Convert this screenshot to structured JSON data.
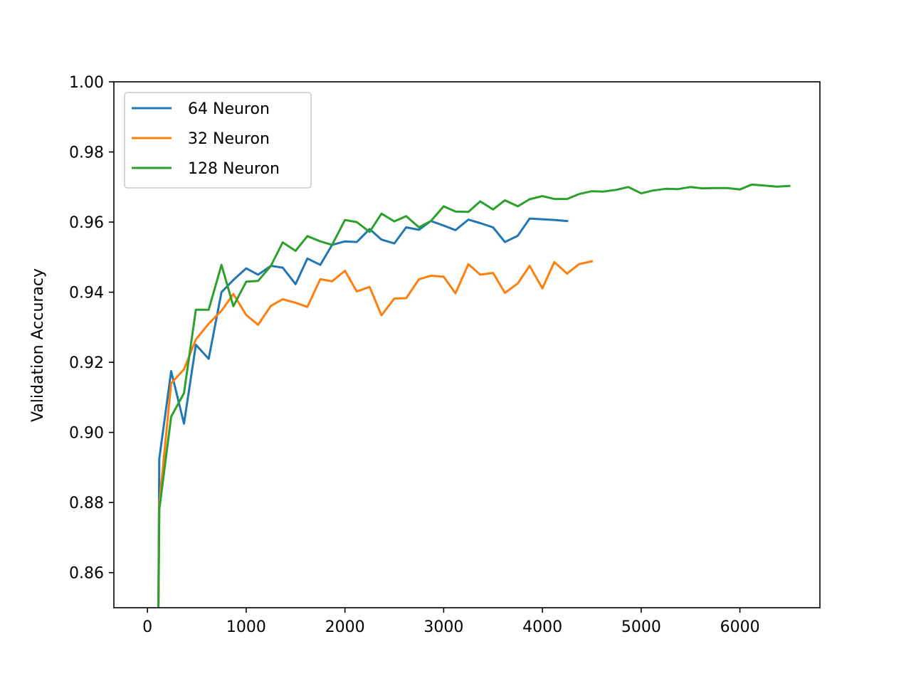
{
  "chart_data": {
    "type": "line",
    "title": "",
    "xlabel": "",
    "ylabel": "Validation Accuracy",
    "xlim": [
      -340,
      6810
    ],
    "ylim": [
      0.85,
      1.0
    ],
    "xticks": [
      0,
      1000,
      2000,
      3000,
      4000,
      5000,
      6000
    ],
    "xtick_labels": [
      "0",
      "1000",
      "2000",
      "3000",
      "4000",
      "5000",
      "6000"
    ],
    "yticks": [
      0.86,
      0.88,
      0.9,
      0.92,
      0.94,
      0.96,
      0.98,
      1.0
    ],
    "ytick_labels": [
      "0.86",
      "0.88",
      "0.90",
      "0.92",
      "0.94",
      "0.96",
      "0.98",
      "1.00"
    ],
    "grid": false,
    "legend_position": "top-left",
    "series": [
      {
        "name": "64 Neuron",
        "color": "#1f77b4",
        "x": [
          110,
          120,
          240,
          370,
          490,
          620,
          750,
          870,
          1000,
          1120,
          1250,
          1370,
          1500,
          1620,
          1750,
          1870,
          2000,
          2120,
          2250,
          2370,
          2500,
          2620,
          2750,
          2870,
          3000,
          3120,
          3250,
          3370,
          3500,
          3620,
          3750,
          3870,
          4000,
          4120,
          4250
        ],
        "y": [
          0.845,
          0.8925,
          0.9175,
          0.9025,
          0.925,
          0.921,
          0.94,
          0.9435,
          0.9468,
          0.945,
          0.9475,
          0.947,
          0.9423,
          0.9496,
          0.9478,
          0.9535,
          0.9545,
          0.9543,
          0.958,
          0.955,
          0.9539,
          0.9585,
          0.9578,
          0.9603,
          0.959,
          0.9577,
          0.9607,
          0.9597,
          0.9585,
          0.9543,
          0.9561,
          0.961,
          0.9608,
          0.9606,
          0.9603
        ]
      },
      {
        "name": "32 Neuron",
        "color": "#ff7f0e",
        "x": [
          110,
          120,
          240,
          370,
          490,
          620,
          750,
          870,
          1000,
          1120,
          1250,
          1370,
          1500,
          1620,
          1750,
          1870,
          2000,
          2120,
          2250,
          2370,
          2500,
          2620,
          2750,
          2870,
          3000,
          3120,
          3250,
          3370,
          3500,
          3620,
          3750,
          3870,
          4000,
          4120,
          4250,
          4370,
          4500
        ],
        "y": [
          0.845,
          0.8795,
          0.914,
          0.918,
          0.9265,
          0.931,
          0.9347,
          0.9395,
          0.9335,
          0.9307,
          0.9361,
          0.938,
          0.937,
          0.9358,
          0.9437,
          0.9431,
          0.9461,
          0.9402,
          0.9415,
          0.9334,
          0.9382,
          0.9383,
          0.9437,
          0.9447,
          0.9444,
          0.9397,
          0.948,
          0.945,
          0.9455,
          0.9398,
          0.9425,
          0.9475,
          0.9411,
          0.9486,
          0.9453,
          0.948,
          0.9488
        ]
      },
      {
        "name": "128 Neuron",
        "color": "#2ca02c",
        "x": [
          110,
          120,
          240,
          370,
          490,
          620,
          750,
          870,
          1000,
          1120,
          1250,
          1370,
          1500,
          1620,
          1750,
          1870,
          2000,
          2120,
          2250,
          2370,
          2500,
          2620,
          2750,
          2870,
          3000,
          3120,
          3250,
          3370,
          3500,
          3620,
          3750,
          3870,
          4000,
          4120,
          4250,
          4370,
          4500,
          4620,
          4750,
          4870,
          5000,
          5120,
          5250,
          5370,
          5500,
          5620,
          5750,
          5870,
          6000,
          6120,
          6250,
          6370,
          6500
        ],
        "y": [
          0.845,
          0.878,
          0.9045,
          0.9112,
          0.935,
          0.935,
          0.9478,
          0.936,
          0.943,
          0.9432,
          0.9475,
          0.9542,
          0.9518,
          0.956,
          0.9545,
          0.9535,
          0.9606,
          0.96,
          0.9572,
          0.9624,
          0.9602,
          0.9617,
          0.9585,
          0.9603,
          0.9645,
          0.963,
          0.9629,
          0.9659,
          0.9636,
          0.9662,
          0.9645,
          0.9665,
          0.9674,
          0.9666,
          0.9666,
          0.968,
          0.9688,
          0.9687,
          0.9692,
          0.97,
          0.9682,
          0.969,
          0.9695,
          0.9694,
          0.97,
          0.9696,
          0.9697,
          0.9697,
          0.9693,
          0.9707,
          0.9704,
          0.9701,
          0.9703
        ]
      }
    ]
  }
}
